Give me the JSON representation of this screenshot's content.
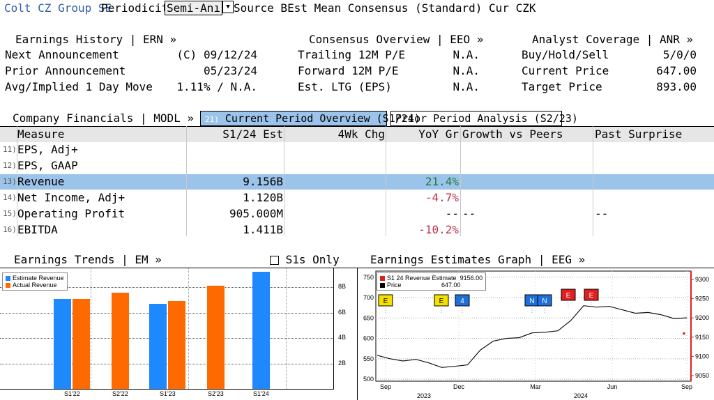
{
  "header": {
    "company": "Colt CZ Group SE",
    "periodicity_label": "Periodicity",
    "periodicity_value": "Semi-Anı",
    "source_label": "Source BEst Mean Consensus (Standard) Cur CZK"
  },
  "earnings_history": {
    "title": "Earnings History | ERN »",
    "rows": [
      {
        "label": "Next Announcement",
        "value": "(C)  09/12/24"
      },
      {
        "label": "Prior Announcement",
        "value": "05/23/24"
      },
      {
        "label": "Avg/Implied 1 Day Move",
        "value": "1.11% / N.A."
      }
    ]
  },
  "consensus": {
    "title": "Consensus Overview | EEO »",
    "rows": [
      {
        "label": "Trailing 12M P/E",
        "value": "N.A."
      },
      {
        "label": "Forward 12M P/E",
        "value": "N.A."
      },
      {
        "label": "Est. LTG (EPS)",
        "value": "N.A."
      }
    ]
  },
  "analyst": {
    "title": "Analyst Coverage | ANR »",
    "rows": [
      {
        "label": "Buy/Hold/Sell",
        "value": "5/0/0"
      },
      {
        "label": "Current Price",
        "value": "647.00"
      },
      {
        "label": "Target Price",
        "value": "893.00"
      }
    ]
  },
  "financials": {
    "title": "Company Financials | MODL »",
    "tab1_num": "21)",
    "tab1": "Current Period Overview (S1/24)",
    "tab2": "Prior Period Analysis (S2/23)",
    "columns": [
      "Measure",
      "S1/24 Est",
      "4Wk Chg",
      "YoY Gr",
      "Growth vs Peers",
      "Past Surprise"
    ],
    "rows": [
      {
        "num": "11)",
        "measure": "EPS, Adj+",
        "est": "",
        "chg": "",
        "yoy": "",
        "peers": "",
        "surprise": ""
      },
      {
        "num": "12)",
        "measure": "EPS, GAAP",
        "est": "",
        "chg": "",
        "yoy": "",
        "peers": "",
        "surprise": ""
      },
      {
        "num": "13)",
        "measure": "Revenue",
        "est": "9.156B",
        "chg": "",
        "yoy": "21.4%",
        "peers": "",
        "surprise": ""
      },
      {
        "num": "14)",
        "measure": "Net Income, Adj+",
        "est": "1.120B",
        "chg": "",
        "yoy": "-4.7%",
        "peers": "",
        "surprise": ""
      },
      {
        "num": "15)",
        "measure": "Operating Profit",
        "est": "905.000M",
        "chg": "",
        "yoy": "--",
        "peers": "--",
        "surprise": "--"
      },
      {
        "num": "16)",
        "measure": "EBITDA",
        "est": "1.411B",
        "chg": "",
        "yoy": "-10.2%",
        "peers": "",
        "surprise": ""
      }
    ]
  },
  "trends": {
    "title": "Earnings Trends | EM »",
    "checkbox_label": "S1s Only",
    "legend": [
      "Estimate Revenue",
      "Actual Revenue"
    ],
    "colors": {
      "estimate": "#1e88ff",
      "actual": "#ff6a00"
    }
  },
  "chart_data": [
    {
      "type": "bar",
      "categories": [
        "S1'22",
        "S2'22",
        "S1'23",
        "S2'23",
        "S1'24"
      ],
      "series": [
        {
          "name": "Estimate Revenue",
          "values": [
            7.1,
            null,
            6.7,
            null,
            9.2
          ]
        },
        {
          "name": "Actual Revenue",
          "values": [
            7.1,
            7.6,
            6.9,
            8.1,
            null
          ]
        }
      ],
      "y_ticks": [
        "2B",
        "4B",
        "6B",
        "8B"
      ],
      "ylim": [
        0,
        9.5
      ],
      "legend": "top-left",
      "grid": true
    },
    {
      "type": "line",
      "title": "Earnings Estimates Graph | EEG »",
      "legend_entries": [
        {
          "label": "S1 24 Revenue Estimate",
          "value": "9156.00"
        },
        {
          "label": "Price",
          "value": "647.00"
        }
      ],
      "left_ticks": [
        "500",
        "550",
        "600",
        "650",
        "700",
        "750"
      ],
      "right_ticks": [
        "9050",
        "9100",
        "9150",
        "9200",
        "9250",
        "9300"
      ],
      "x_ticks": [
        "Sep",
        "Dec",
        "Mar",
        "Jun",
        "Sep"
      ],
      "year_labels": [
        "2023",
        "2024"
      ],
      "ylim_left": [
        495,
        765
      ],
      "x": [
        "2023-09-01",
        "2023-09-15",
        "2023-10-01",
        "2023-10-15",
        "2023-11-01",
        "2023-11-15",
        "2023-12-01",
        "2023-12-15",
        "2024-01-01",
        "2024-01-15",
        "2024-02-01",
        "2024-02-15",
        "2024-03-01",
        "2024-03-15",
        "2024-04-01",
        "2024-04-15",
        "2024-05-01",
        "2024-05-15",
        "2024-06-01",
        "2024-06-15",
        "2024-07-01",
        "2024-07-15",
        "2024-08-01",
        "2024-08-15",
        "2024-09-01"
      ],
      "price": [
        555,
        550,
        548,
        545,
        540,
        532,
        528,
        535,
        575,
        590,
        600,
        605,
        610,
        615,
        622,
        640,
        680,
        680,
        675,
        670,
        665,
        660,
        658,
        652,
        647
      ],
      "event_markers": [
        "E",
        "E",
        "4",
        "N",
        "N",
        "E",
        "E"
      ],
      "grid": true
    }
  ]
}
